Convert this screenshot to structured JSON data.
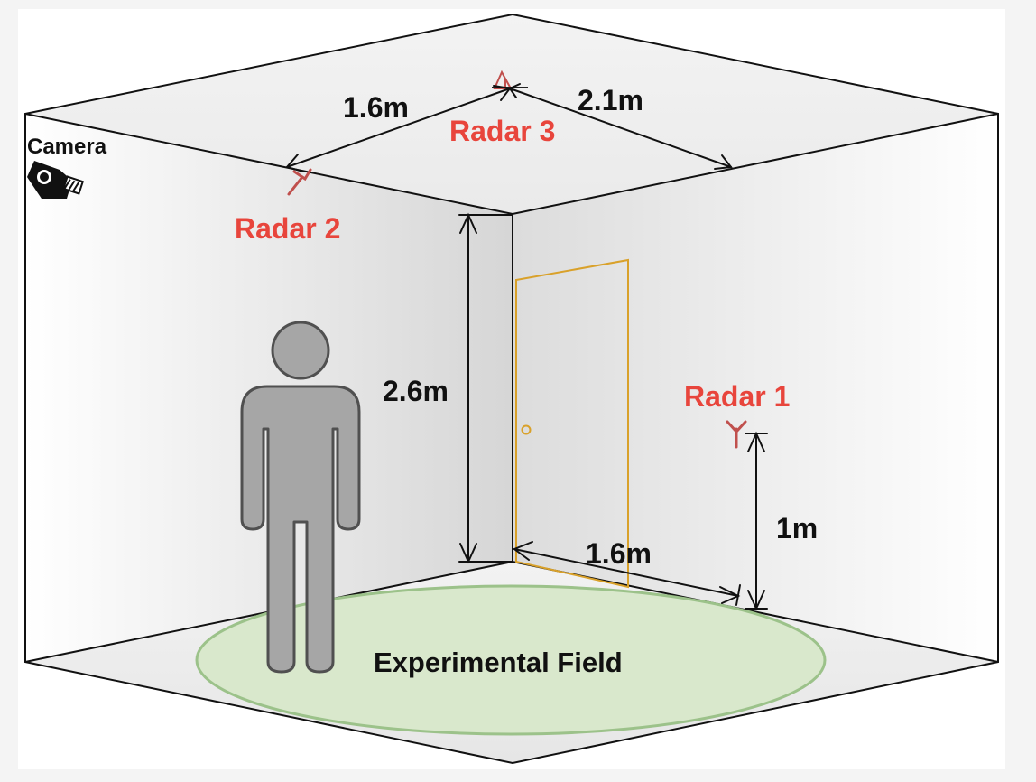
{
  "labels": {
    "camera": "Camera",
    "radar1": "Radar 1",
    "radar2": "Radar 2",
    "radar3": "Radar 3",
    "dim_ceiling_left": "1.6m",
    "dim_ceiling_right": "2.1m",
    "dim_height": "2.6m",
    "dim_floor": "1.6m",
    "dim_radar1_height": "1m",
    "field": "Experimental Field"
  },
  "colors": {
    "radar_label": "#e8453c",
    "radar_icon": "#c0504d",
    "door": "#d9a12a",
    "field_fill": "#d9e8cc",
    "field_stroke": "#9cc28a",
    "person_fill": "#a6a6a6",
    "person_stroke": "#505050",
    "wall_stroke": "#111111"
  },
  "icons": {
    "camera": "security-camera-icon",
    "radar": "antenna-icon",
    "person": "person-silhouette-icon",
    "door": "door-icon"
  }
}
